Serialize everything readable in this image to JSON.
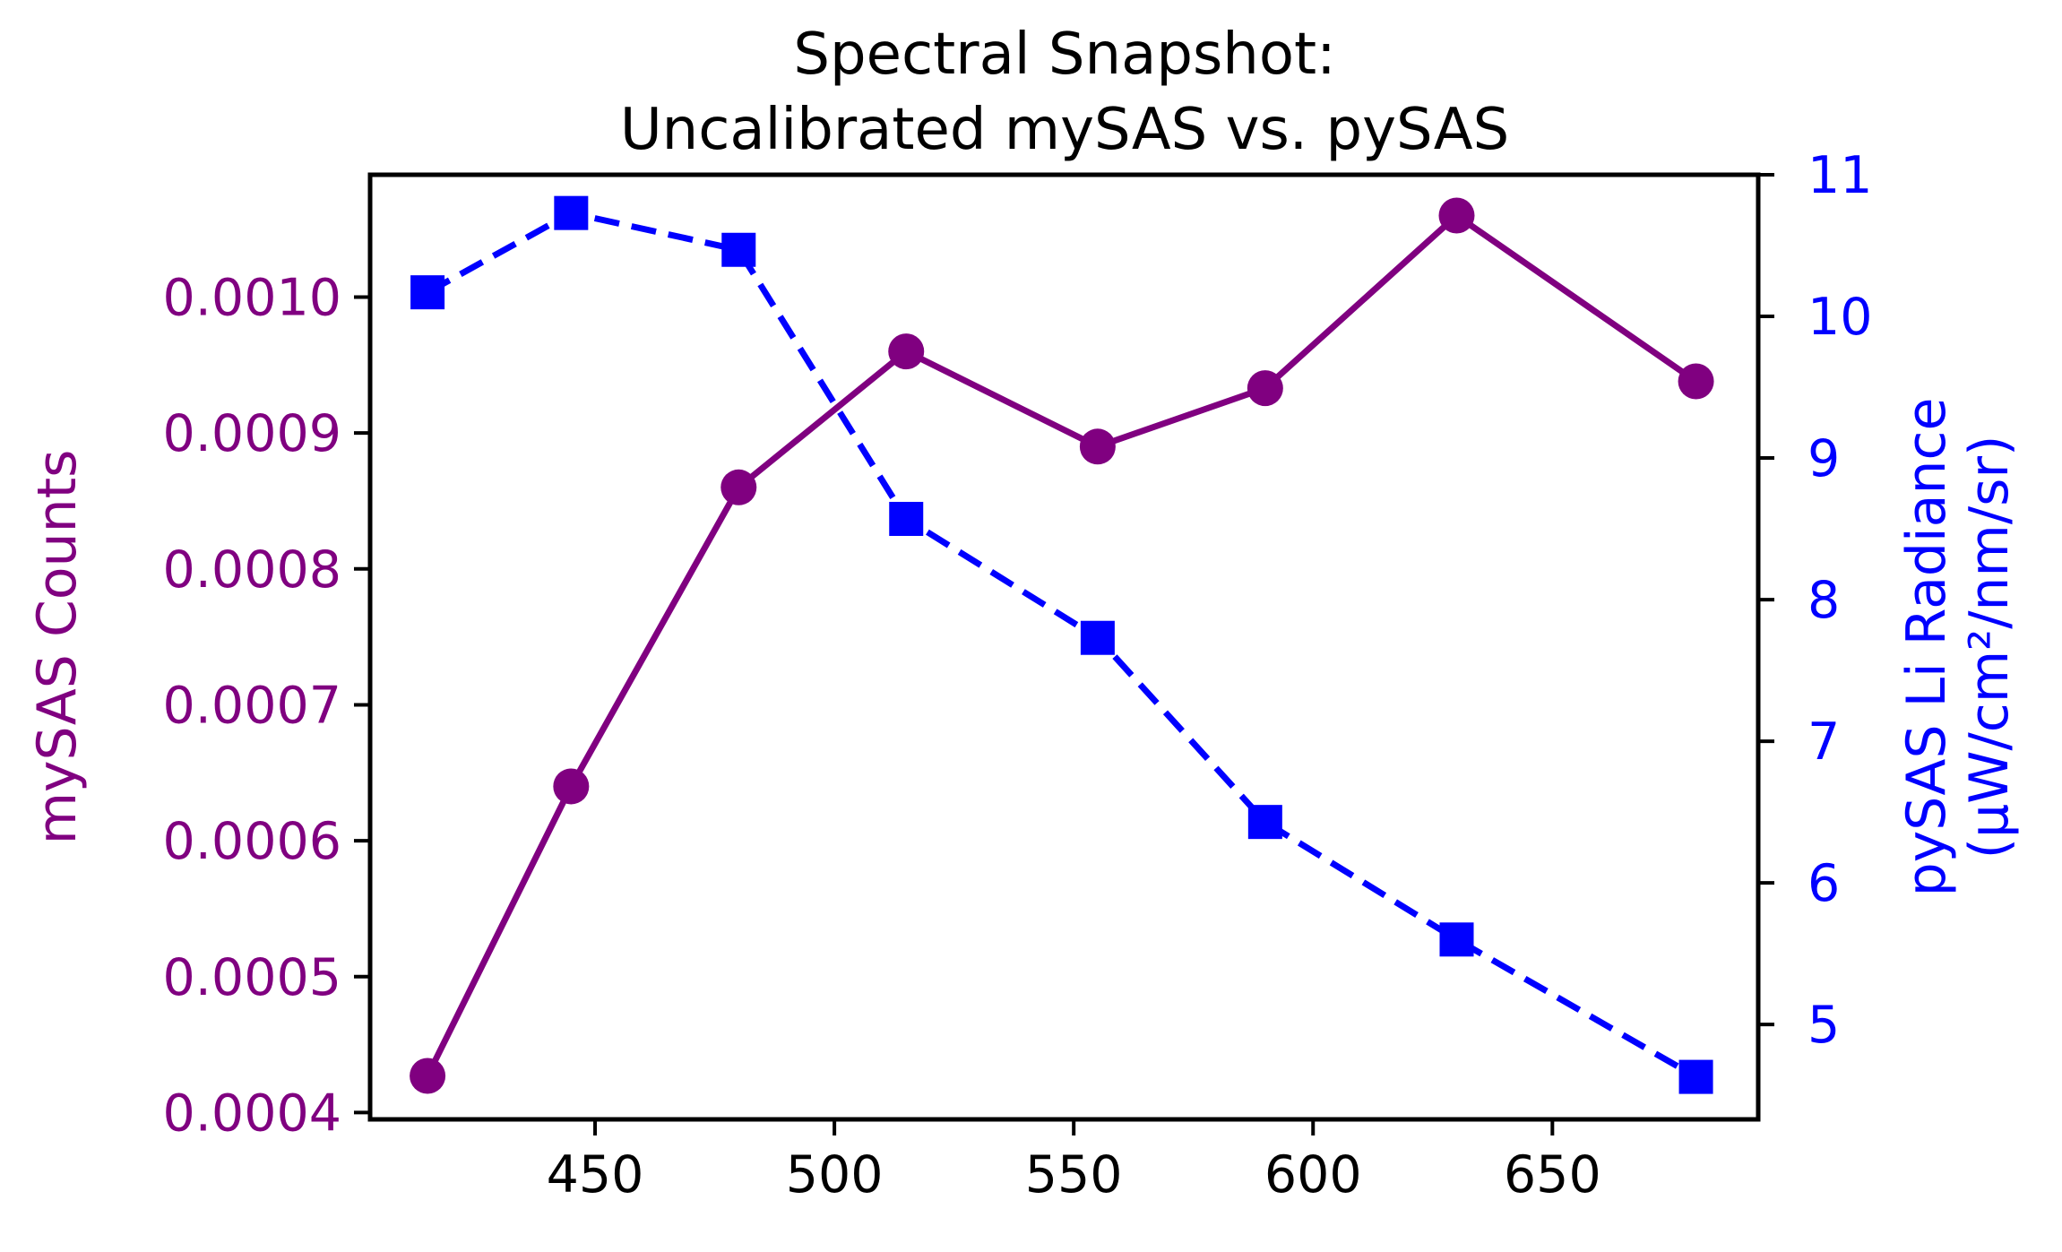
{
  "chart_data": {
    "type": "line",
    "title": [
      "Spectral Snapshot:",
      "Uncalibrated mySAS vs. pySAS"
    ],
    "xlabel": "",
    "x": [
      415,
      445,
      480,
      515,
      555,
      590,
      630,
      680
    ],
    "xticks": [
      450,
      500,
      550,
      600,
      650
    ],
    "xlim": [
      403,
      693
    ],
    "series": [
      {
        "axis": "left",
        "values": [
          0.000427,
          0.00064,
          0.00086,
          0.00096,
          0.00089,
          0.000933,
          0.00106,
          0.000938
        ],
        "color": "#800080",
        "marker": "circle",
        "linestyle": "solid"
      },
      {
        "axis": "right",
        "values": [
          10.17,
          10.73,
          10.47,
          8.57,
          7.73,
          6.43,
          5.6,
          4.63
        ],
        "color": "#0000ff",
        "marker": "square",
        "linestyle": "dashed"
      }
    ],
    "y_left": {
      "label": "mySAS Counts",
      "ticks": [
        0.0004,
        0.0005,
        0.0006,
        0.0007,
        0.0008,
        0.0009,
        0.001
      ],
      "tick_labels": [
        "0.0004",
        "0.0005",
        "0.0006",
        "0.0007",
        "0.0008",
        "0.0009",
        "0.0010"
      ],
      "lim": [
        0.000395,
        0.00109
      ],
      "color": "#800080"
    },
    "y_right": {
      "label": [
        "pySAS Li Radiance",
        "(μW/cm²/nm/sr)"
      ],
      "ticks": [
        5,
        6,
        7,
        8,
        9,
        10,
        11
      ],
      "tick_labels": [
        "5",
        "6",
        "7",
        "8",
        "9",
        "10",
        "11"
      ],
      "lim": [
        4.33,
        11.0
      ],
      "color": "#0000ff"
    },
    "grid": false,
    "legend": "none"
  }
}
